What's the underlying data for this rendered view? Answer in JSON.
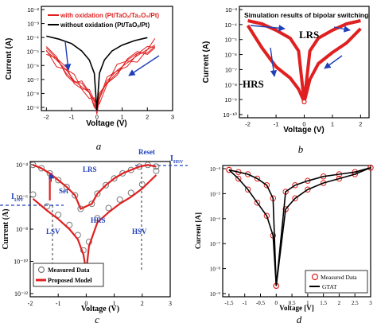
{
  "colors": {
    "red": "#e02020",
    "dark_red": "#b01010",
    "black": "#000000",
    "blue": "#1f3fb8",
    "gray": "#7a7a7a",
    "dashed_blue": "#2040c0"
  },
  "panels": {
    "a": {
      "caption": "a",
      "legend": [
        "with oxidation (Pt/TaOₓ/Ta₂O₅/Pt)",
        "without oxidation (Pt/TaOₓ/Pt)"
      ],
      "ylabel": "Current (A)",
      "xlabel": "Voltage (V)",
      "yticks": [
        "10⁻²",
        "10⁻³",
        "10⁻⁴",
        "10⁻⁵",
        "10⁻⁶",
        "10⁻⁷",
        "10⁻⁸",
        "10⁻⁹"
      ],
      "xticks": [
        "-2",
        "-1",
        "0",
        "1",
        "2",
        "3"
      ]
    },
    "b": {
      "caption": "b",
      "title": "Simulation results of bipolar switching",
      "ylabel": "Current (A)",
      "xlabel": "Voltage (V)",
      "yticks": [
        "10⁻³",
        "10⁻⁴",
        "10⁻⁵",
        "10⁻⁶",
        "10⁻⁷",
        "10⁻⁸",
        "10⁻⁹",
        "10⁻¹⁰"
      ],
      "xticks": [
        "-2",
        "-1",
        "0",
        "1",
        "2"
      ],
      "annotations": {
        "lrs": "LRS",
        "hrs": "HRS"
      }
    },
    "c": {
      "caption": "c",
      "ylabel": "Current (A)",
      "xlabel": "Voltage (V)",
      "yticks": [
        "10⁻⁴",
        "10⁻⁶",
        "10⁻⁸",
        "10⁻¹⁰",
        "10⁻¹²"
      ],
      "xticks": [
        "-2",
        "-1",
        "0",
        "1",
        "2",
        "3"
      ],
      "annotations": {
        "reset": "Reset",
        "ihsv": "I",
        "ihsv_sub": "HSV",
        "lrs": "LRS",
        "ilsv": "I",
        "ilsv_sub": "LSV",
        "set": "Set",
        "hrs": "HRS",
        "lsv": "LSV",
        "hsv": "HSV"
      },
      "legend": [
        "Measured Data",
        "Proposed Model"
      ]
    },
    "d": {
      "caption": "d",
      "ylabel": "Current [A]",
      "xlabel": "Voltage [V]",
      "yticks": [
        "10⁻⁴",
        "10⁻⁵",
        "10⁻⁶",
        "10⁻⁷",
        "10⁻⁸",
        "10⁻⁹"
      ],
      "xticks": [
        "-1.5",
        "-1",
        "-0.5",
        "0",
        "0.5",
        "1",
        "1.5",
        "2",
        "2.5",
        "3"
      ],
      "legend": [
        "Measured Data",
        "GTAT"
      ]
    }
  },
  "chart_data": [
    {
      "type": "line",
      "panel": "a",
      "xlim": [
        -2.2,
        3
      ],
      "ylim_log10": [
        -9,
        -2
      ],
      "series": [
        {
          "name": "with oxidation (Pt/TaOₓ/Ta₂O₅/Pt)",
          "x": [
            -2,
            -1.6,
            -1.2,
            -0.9,
            -0.6,
            -0.3,
            -0.1,
            0,
            0.1,
            0.4,
            0.8,
            1.2,
            1.6,
            2,
            2.3
          ],
          "y": [
            -5.0,
            -5.6,
            -6.3,
            -7.0,
            -7.4,
            -7.8,
            -8.4,
            -9,
            -8.2,
            -7.0,
            -6.3,
            -5.8,
            -5.3,
            -4.9,
            -4.6
          ]
        },
        {
          "name": "without oxidation (Pt/TaOₓ/Pt)",
          "x": [
            -2,
            -1.5,
            -1,
            -0.6,
            -0.3,
            -0.1,
            0,
            0.1,
            0.3,
            0.6,
            1,
            1.5,
            2
          ],
          "y": [
            -4.0,
            -4.2,
            -4.5,
            -5.0,
            -5.6,
            -6.5,
            -9,
            -6.5,
            -5.6,
            -5.0,
            -4.6,
            -4.3,
            -4.1
          ]
        }
      ]
    },
    {
      "type": "line",
      "panel": "b",
      "title": "Simulation results of bipolar switching",
      "xlim": [
        -2.3,
        2.3
      ],
      "ylim_log10": [
        -10,
        -3
      ],
      "series": [
        {
          "name": "LRS",
          "x": [
            -2,
            -1.5,
            -1,
            -0.5,
            -0.2,
            0,
            0.2,
            0.5,
            1,
            1.5,
            2
          ],
          "y": [
            -3.9,
            -4.1,
            -4.5,
            -5.0,
            -5.8,
            -9,
            -5.8,
            -5.0,
            -4.5,
            -4.1,
            -3.9
          ]
        },
        {
          "name": "HRS",
          "x": [
            -2,
            -1.5,
            -1,
            -0.5,
            -0.2,
            0,
            0.2,
            0.5,
            1,
            1.5,
            2
          ],
          "y": [
            -4.2,
            -5.6,
            -6.8,
            -7.5,
            -8.2,
            -9,
            -7.6,
            -6.6,
            -5.9,
            -5.3,
            -4.4
          ]
        }
      ]
    },
    {
      "type": "scatter",
      "panel": "c",
      "xlim": [
        -2,
        3
      ],
      "ylim_log10": [
        -12,
        -4
      ],
      "series": [
        {
          "name": "Measured Data",
          "x": [
            -1.9,
            -1.6,
            -1.3,
            -1.0,
            -0.7,
            -0.4,
            -0.2,
            0.2,
            0.4,
            0.7,
            1.0,
            1.3,
            1.6,
            1.9,
            2.2,
            2.5
          ],
          "y": [
            -4.2,
            -4.4,
            -4.7,
            -5.1,
            -5.5,
            -6.0,
            -6.8,
            -6.5,
            -5.9,
            -5.4,
            -5.0,
            -4.7,
            -4.5,
            -4.3,
            -4.2,
            -4.3
          ]
        },
        {
          "name": "Proposed Model",
          "x": [
            -1.9,
            -1.4,
            -1,
            -0.6,
            -0.3,
            -0.1,
            0,
            0.1,
            0.4,
            0.8,
            1.2,
            1.6,
            2,
            2.5
          ],
          "y": [
            -6.2,
            -6.9,
            -7.4,
            -8.0,
            -8.6,
            -9.5,
            -10.5,
            -9.0,
            -7.6,
            -7.0,
            -6.5,
            -6.1,
            -5.6,
            -4.8
          ]
        }
      ]
    },
    {
      "type": "scatter",
      "panel": "d",
      "xlim": [
        -1.7,
        3
      ],
      "ylim_log10": [
        -10,
        -4
      ],
      "series": [
        {
          "name": "Measured Data",
          "x": [
            -1.5,
            -1.2,
            -0.9,
            -0.6,
            -0.3,
            -0.1,
            0,
            0.3,
            0.6,
            1,
            1.5,
            2,
            2.5,
            3
          ],
          "y": [
            -4.2,
            -4.6,
            -5.1,
            -5.7,
            -6.3,
            -7.2,
            -9.5,
            -6.0,
            -5.5,
            -5.1,
            -4.8,
            -4.6,
            -4.4,
            -4.1
          ]
        },
        {
          "name": "GTAT",
          "x": [
            -1.5,
            -1.2,
            -0.9,
            -0.6,
            -0.3,
            -0.1,
            0,
            0.3,
            0.6,
            1,
            1.5,
            2,
            2.5,
            3
          ],
          "y": [
            -4.2,
            -4.3,
            -4.4,
            -4.6,
            -4.9,
            -5.5,
            -9.5,
            -5.2,
            -4.9,
            -4.7,
            -4.5,
            -4.4,
            -4.3,
            -4.1
          ]
        }
      ]
    }
  ]
}
